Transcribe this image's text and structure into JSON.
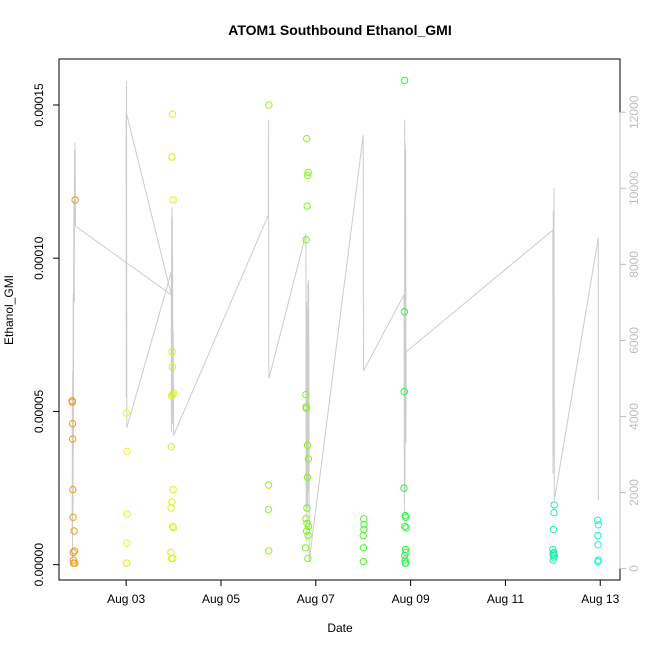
{
  "chart_data": {
    "type": "scatter",
    "title": "ATOM1 Southbound Ethanol_GMI",
    "xlabel": "Date",
    "ylabel": "Ethanol_GMI",
    "x_is_date": true,
    "xlim": [
      "2023-08-01T14:00",
      "2023-08-13T10:00"
    ],
    "ylim": [
      -5e-06,
      0.000165
    ],
    "x_ticks": [
      {
        "value": "2023-08-03",
        "label": "Aug 03"
      },
      {
        "value": "2023-08-05",
        "label": "Aug 05"
      },
      {
        "value": "2023-08-07",
        "label": "Aug 07"
      },
      {
        "value": "2023-08-09",
        "label": "Aug 09"
      },
      {
        "value": "2023-08-11",
        "label": "Aug 11"
      },
      {
        "value": "2023-08-13",
        "label": "Aug 13"
      }
    ],
    "y_ticks": [
      {
        "value": 0,
        "label": "0.00000"
      },
      {
        "value": 5e-05,
        "label": "0.00005"
      },
      {
        "value": 0.0001,
        "label": "0.00010"
      },
      {
        "value": 0.00015,
        "label": "0.00015"
      }
    ],
    "y2lim": [
      -300,
      13400
    ],
    "y2_ticks": [
      {
        "value": 0,
        "label": "0"
      },
      {
        "value": 2000,
        "label": "2000"
      },
      {
        "value": 4000,
        "label": "4000"
      },
      {
        "value": 6000,
        "label": "6000"
      },
      {
        "value": 8000,
        "label": "8000"
      },
      {
        "value": 10000,
        "label": "10000"
      },
      {
        "value": 12000,
        "label": "12000"
      }
    ],
    "grid": false,
    "line_color": "#cccccc",
    "right_axis_color": "#bdbdbd",
    "point_series": [
      {
        "color": "#ee9b1b",
        "points": [
          [
            "2023-08-01T20:40",
            5.35e-05
          ],
          [
            "2023-08-01T20:45",
            5.3e-05
          ],
          [
            "2023-08-01T20:50",
            4.6e-05
          ],
          [
            "2023-08-01T20:55",
            4.1e-05
          ],
          [
            "2023-08-01T21:00",
            2.45e-05
          ],
          [
            "2023-08-01T21:05",
            1.55e-05
          ],
          [
            "2023-08-01T21:10",
            4e-06
          ],
          [
            "2023-08-01T21:15",
            1.5e-06
          ],
          [
            "2023-08-01T21:20",
            5e-07
          ],
          [
            "2023-08-01T21:40",
            1.1e-05
          ],
          [
            "2023-08-01T21:50",
            4.5e-06
          ],
          [
            "2023-08-01T22:10",
            0.000119
          ],
          [
            "2023-08-01T22:00",
            5e-07
          ]
        ]
      },
      {
        "color": "#f2f21e",
        "points": [
          [
            "2023-08-03T00:05",
            4.95e-05
          ],
          [
            "2023-08-03T00:10",
            5e-07
          ],
          [
            "2023-08-03T00:15",
            7e-06
          ],
          [
            "2023-08-03T00:20",
            5e-07
          ],
          [
            "2023-08-03T00:25",
            3.7e-05
          ],
          [
            "2023-08-03T00:30",
            1.65e-05
          ]
        ]
      },
      {
        "color": "#d9f21e",
        "points": [
          [
            "2023-08-03T22:40",
            4e-06
          ],
          [
            "2023-08-03T22:45",
            1.85e-05
          ],
          [
            "2023-08-03T22:50",
            3.85e-05
          ],
          [
            "2023-08-03T22:55",
            5.5e-05
          ],
          [
            "2023-08-03T23:00",
            2e-06
          ],
          [
            "2023-08-03T23:05",
            2.05e-05
          ],
          [
            "2023-08-03T23:10",
            0.000133
          ],
          [
            "2023-08-03T23:15",
            6.95e-05
          ],
          [
            "2023-08-03T23:20",
            6.45e-05
          ],
          [
            "2023-08-03T23:25",
            0.000147
          ],
          [
            "2023-08-03T23:30",
            5.55e-05
          ],
          [
            "2023-08-03T23:35",
            1.25e-05
          ],
          [
            "2023-08-03T23:40",
            2e-06
          ],
          [
            "2023-08-03T23:45",
            2.45e-05
          ],
          [
            "2023-08-03T23:50",
            0.000119
          ],
          [
            "2023-08-03T23:55",
            1.2e-05
          ],
          [
            "2023-08-04T00:00",
            5.6e-05
          ]
        ]
      },
      {
        "color": "#9df21e",
        "points": [
          [
            "2023-08-06T00:00",
            1.8e-05
          ],
          [
            "2023-08-06T00:05",
            2.6e-05
          ],
          [
            "2023-08-06T00:10",
            4.5e-06
          ],
          [
            "2023-08-06T00:15",
            0.00015
          ]
        ]
      },
      {
        "color": "#80f220",
        "points": [
          [
            "2023-08-06T18:50",
            5.5e-06
          ],
          [
            "2023-08-06T18:55",
            5.55e-05
          ],
          [
            "2023-08-06T19:00",
            1.5e-05
          ],
          [
            "2023-08-06T19:05",
            0.000106
          ],
          [
            "2023-08-06T19:10",
            5.15e-05
          ],
          [
            "2023-08-06T19:15",
            5.1e-05
          ],
          [
            "2023-08-06T19:20",
            1.1e-05
          ],
          [
            "2023-08-06T19:25",
            0.000139
          ],
          [
            "2023-08-06T19:30",
            1.85e-05
          ],
          [
            "2023-08-06T19:35",
            1.35e-05
          ],
          [
            "2023-08-06T19:40",
            0.000117
          ],
          [
            "2023-08-06T19:45",
            2.85e-05
          ],
          [
            "2023-08-06T19:50",
            3.9e-05
          ],
          [
            "2023-08-06T19:55",
            0.000127
          ],
          [
            "2023-08-06T20:00",
            2e-06
          ],
          [
            "2023-08-06T20:05",
            9.5e-06
          ],
          [
            "2023-08-06T20:10",
            0.000128
          ],
          [
            "2023-08-06T20:15",
            3.45e-05
          ],
          [
            "2023-08-06T20:20",
            1.25e-05
          ]
        ]
      },
      {
        "color": "#4ef23b",
        "points": [
          [
            "2023-08-08T00:00",
            9.5e-06
          ],
          [
            "2023-08-08T00:05",
            1e-06
          ],
          [
            "2023-08-08T00:10",
            5.5e-06
          ],
          [
            "2023-08-08T00:15",
            1.5e-05
          ],
          [
            "2023-08-08T00:20",
            1.15e-05
          ],
          [
            "2023-08-08T00:25",
            1.3e-05
          ]
        ]
      },
      {
        "color": "#2ef244",
        "points": [
          [
            "2023-08-08T20:40",
            2.5e-05
          ],
          [
            "2023-08-08T20:45",
            5.65e-05
          ],
          [
            "2023-08-08T20:50",
            8.25e-05
          ],
          [
            "2023-08-08T20:55",
            0.000158
          ],
          [
            "2023-08-08T21:00",
            3e-06
          ],
          [
            "2023-08-08T21:05",
            1.25e-05
          ],
          [
            "2023-08-08T21:10",
            1.5e-06
          ],
          [
            "2023-08-08T21:15",
            1.6e-05
          ],
          [
            "2023-08-08T21:20",
            5e-07
          ],
          [
            "2023-08-08T21:25",
            5e-06
          ],
          [
            "2023-08-08T21:30",
            1.55e-05
          ],
          [
            "2023-08-08T21:35",
            5e-07
          ],
          [
            "2023-08-08T21:40",
            4e-06
          ],
          [
            "2023-08-08T21:45",
            1.2e-05
          ]
        ]
      },
      {
        "color": "#1ef2a8",
        "points": [
          [
            "2023-08-12T00:00",
            5e-06
          ],
          [
            "2023-08-12T00:05",
            3.5e-06
          ],
          [
            "2023-08-12T00:10",
            1.5e-06
          ],
          [
            "2023-08-12T00:15",
            1.15e-05
          ],
          [
            "2023-08-12T00:20",
            2.5e-06
          ],
          [
            "2023-08-12T00:25",
            3.5e-06
          ],
          [
            "2023-08-12T00:30",
            4e-06
          ],
          [
            "2023-08-12T00:35",
            1.7e-05
          ],
          [
            "2023-08-12T00:40",
            1.95e-05
          ],
          [
            "2023-08-12T00:45",
            3e-06
          ]
        ]
      },
      {
        "color": "#1ef2c8",
        "points": [
          [
            "2023-08-12T22:40",
            1.45e-05
          ],
          [
            "2023-08-12T22:45",
            1e-06
          ],
          [
            "2023-08-12T22:50",
            9.5e-06
          ],
          [
            "2023-08-12T22:55",
            6.5e-06
          ],
          [
            "2023-08-12T23:00",
            1.3e-05
          ],
          [
            "2023-08-12T23:05",
            1.5e-06
          ]
        ]
      }
    ],
    "line_series": [
      [
        "2023-08-01T20:40",
        1000
      ],
      [
        "2023-08-01T20:45",
        4500
      ],
      [
        "2023-08-01T20:50",
        200
      ],
      [
        "2023-08-01T20:55",
        5200
      ],
      [
        "2023-08-01T21:05",
        1500
      ],
      [
        "2023-08-01T21:10",
        7200
      ],
      [
        "2023-08-01T21:15",
        3000
      ],
      [
        "2023-08-01T21:30",
        9000
      ],
      [
        "2023-08-01T21:40",
        9700
      ],
      [
        "2023-08-01T21:45",
        7000
      ],
      [
        "2023-08-01T21:50",
        11000
      ],
      [
        "2023-08-01T22:00",
        9400
      ],
      [
        "2023-08-01T22:10",
        11200
      ],
      [
        "2023-08-01T22:20",
        9000
      ],
      [
        "2023-08-03T22:50",
        7200
      ],
      [
        "2023-08-03T00:00",
        12000
      ],
      [
        "2023-08-03T00:05",
        4500
      ],
      [
        "2023-08-03T00:10",
        12800
      ],
      [
        "2023-08-03T00:20",
        3700
      ],
      [
        "2023-08-03T22:50",
        7800
      ],
      [
        "2023-08-03T22:55",
        3600
      ],
      [
        "2023-08-03T23:00",
        9200
      ],
      [
        "2023-08-03T23:05",
        5200
      ],
      [
        "2023-08-03T23:10",
        9500
      ],
      [
        "2023-08-03T23:15",
        4000
      ],
      [
        "2023-08-03T23:20",
        9300
      ],
      [
        "2023-08-03T23:25",
        3800
      ],
      [
        "2023-08-03T23:30",
        8200
      ],
      [
        "2023-08-03T23:40",
        5300
      ],
      [
        "2023-08-03T23:50",
        6200
      ],
      [
        "2023-08-04T00:00",
        3500
      ],
      [
        "2023-08-06T00:00",
        9300
      ],
      [
        "2023-08-06T00:05",
        11800
      ],
      [
        "2023-08-06T00:10",
        5600
      ],
      [
        "2023-08-06T00:20",
        5000
      ],
      [
        "2023-08-06T19:00",
        8800
      ],
      [
        "2023-08-06T19:10",
        1500
      ],
      [
        "2023-08-06T19:20",
        7000
      ],
      [
        "2023-08-06T19:30",
        700
      ],
      [
        "2023-08-06T19:40",
        6800
      ],
      [
        "2023-08-06T19:50",
        1600
      ],
      [
        "2023-08-06T20:00",
        7500
      ],
      [
        "2023-08-06T20:10",
        2000
      ],
      [
        "2023-08-06T20:20",
        7600
      ],
      [
        "2023-08-06T20:30",
        5500
      ],
      [
        "2023-08-06T20:40",
        200
      ],
      [
        "2023-08-08T00:00",
        11400
      ],
      [
        "2023-08-08T00:10",
        5200
      ],
      [
        "2023-08-08T20:40",
        7200
      ],
      [
        "2023-08-08T20:50",
        1500
      ],
      [
        "2023-08-08T21:00",
        11800
      ],
      [
        "2023-08-08T21:10",
        2000
      ],
      [
        "2023-08-08T21:15",
        11200
      ],
      [
        "2023-08-08T21:20",
        5000
      ],
      [
        "2023-08-08T21:30",
        11000
      ],
      [
        "2023-08-08T21:40",
        3300
      ],
      [
        "2023-08-08T21:45",
        5700
      ],
      [
        "2023-08-12T00:00",
        8900
      ],
      [
        "2023-08-12T00:05",
        2500
      ],
      [
        "2023-08-12T00:15",
        9400
      ],
      [
        "2023-08-12T00:25",
        3000
      ],
      [
        "2023-08-12T00:35",
        10000
      ],
      [
        "2023-08-12T00:45",
        1800
      ],
      [
        "2023-08-12T23:00",
        8700
      ],
      [
        "2023-08-12T23:05",
        1800
      ]
    ]
  }
}
